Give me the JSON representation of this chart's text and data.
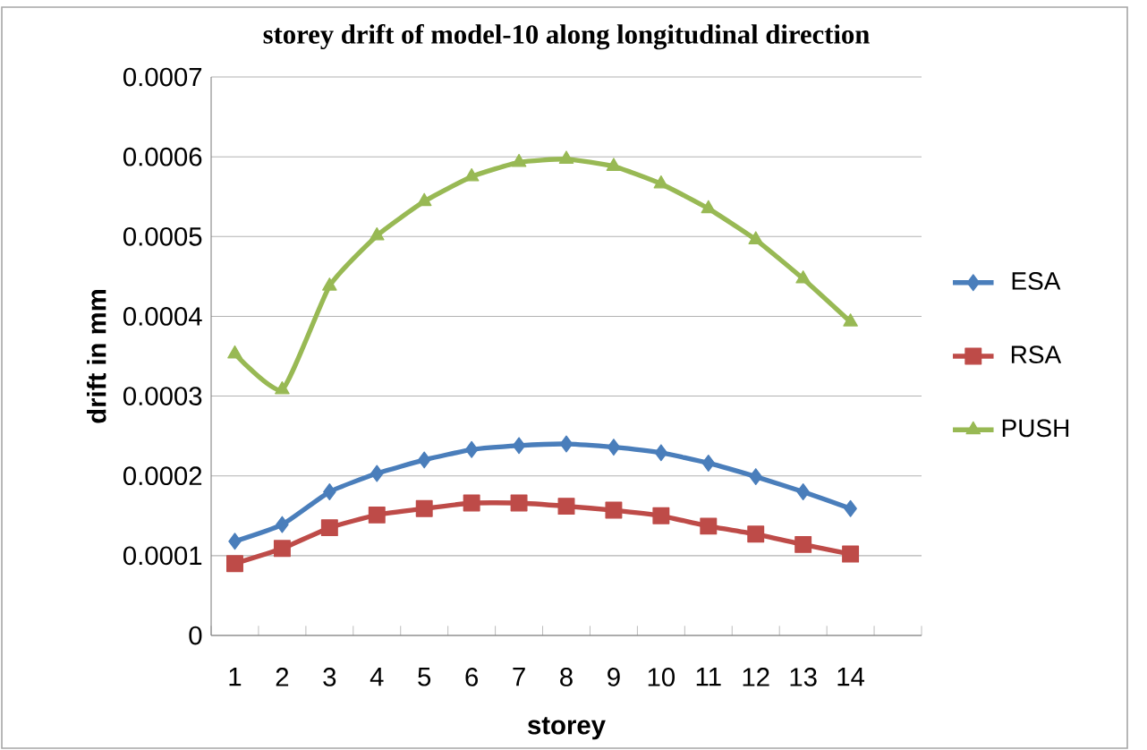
{
  "chart_data": {
    "type": "line",
    "title": "storey drift of model-10 along longitudinal direction",
    "xlabel": "storey",
    "ylabel": "drift in mm",
    "categories": [
      "1",
      "2",
      "3",
      "4",
      "5",
      "6",
      "7",
      "8",
      "9",
      "10",
      "11",
      "12",
      "13",
      "14"
    ],
    "series": [
      {
        "name": "ESA",
        "color": "#4a7ebb",
        "marker": "diamond",
        "values": [
          0.000118,
          0.000139,
          0.00018,
          0.000203,
          0.00022,
          0.000233,
          0.000238,
          0.00024,
          0.000236,
          0.000229,
          0.000216,
          0.000199,
          0.00018,
          0.000159
        ]
      },
      {
        "name": "RSA",
        "color": "#be4b48",
        "marker": "square",
        "values": [
          9e-05,
          0.000109,
          0.000135,
          0.000151,
          0.000159,
          0.000166,
          0.000166,
          0.000162,
          0.000157,
          0.00015,
          0.000137,
          0.000127,
          0.000114,
          0.000102
        ]
      },
      {
        "name": "PUSH",
        "color": "#98b954",
        "marker": "triangle",
        "values": [
          0.000353,
          0.000308,
          0.000438,
          0.000501,
          0.000544,
          0.000575,
          0.000593,
          0.000597,
          0.000588,
          0.000566,
          0.000535,
          0.000496,
          0.000447,
          0.000393
        ]
      }
    ],
    "ylim": [
      0,
      0.0007
    ],
    "yticks": [
      {
        "value": 0,
        "label": "0"
      },
      {
        "value": 0.0001,
        "label": "0.0001"
      },
      {
        "value": 0.0002,
        "label": "0.0002"
      },
      {
        "value": 0.0003,
        "label": "0.0003"
      },
      {
        "value": 0.0004,
        "label": "0.0004"
      },
      {
        "value": 0.0005,
        "label": "0.0005"
      },
      {
        "value": 0.0006,
        "label": "0.0006"
      },
      {
        "value": 0.0007,
        "label": "0.0007"
      }
    ],
    "grid": "y",
    "legend": "right",
    "line_style": "solid"
  }
}
